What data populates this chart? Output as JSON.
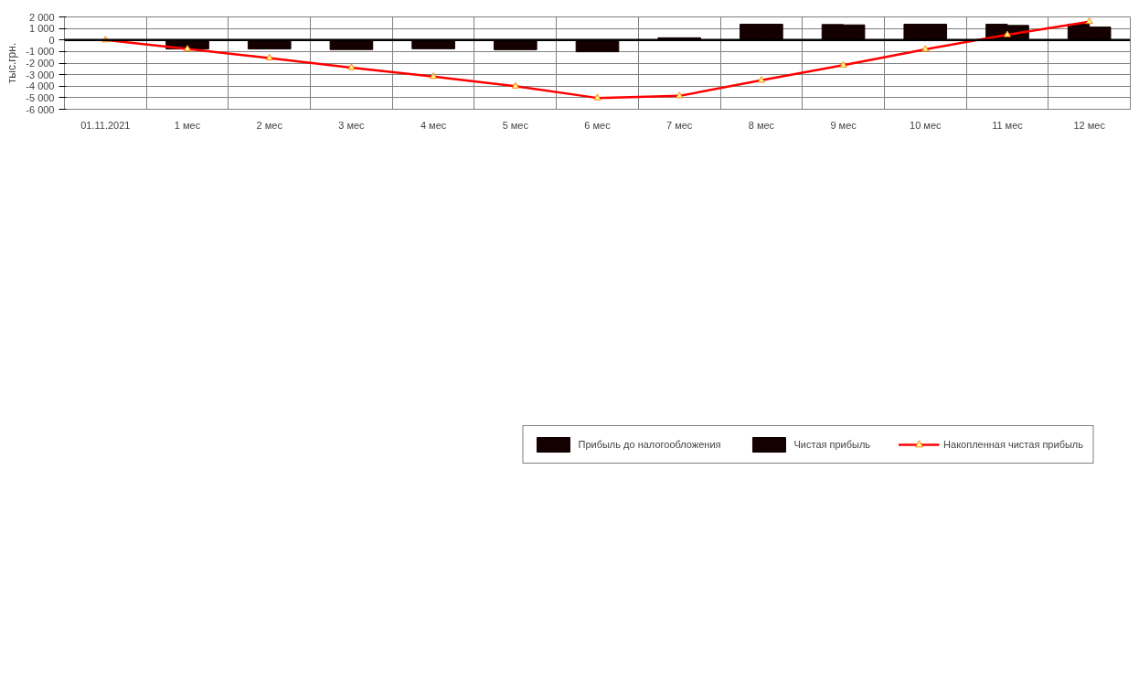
{
  "chart_data": {
    "type": "bar",
    "ylabel": "тыс.грн.",
    "categories": [
      "01.11.2021",
      "1 мес",
      "2 мес",
      "3 мес",
      "4 мес",
      "5 мес",
      "6 мес",
      "7 мес",
      "8 мес",
      "9 мес",
      "10 мес",
      "11 мес",
      "12 мес"
    ],
    "series": [
      {
        "name": "Прибыль до налогообложения",
        "color": "#140000",
        "values": [
          null,
          -780,
          -780,
          -830,
          -760,
          -840,
          -1020,
          190,
          1370,
          1340,
          1370,
          1370,
          1370
        ]
      },
      {
        "name": "Чистая прибыль",
        "color": "#140000",
        "values": [
          null,
          -780,
          -780,
          -830,
          -760,
          -840,
          -1020,
          190,
          1370,
          1310,
          1370,
          1260,
          1120
        ]
      },
      {
        "name": "Накопленная чистая прибыль",
        "type": "line",
        "color": "#ff0000",
        "marker": "triangle",
        "values": [
          0,
          -780,
          -1560,
          -2400,
          -3170,
          -4000,
          -5020,
          -4840,
          -3490,
          -2180,
          -810,
          450,
          1590
        ]
      }
    ],
    "ylim": [
      -6000,
      2000
    ],
    "yticks": [
      {
        "value": -6000,
        "label": "-6 000"
      },
      {
        "value": -5000,
        "label": "-5 000"
      },
      {
        "value": -4000,
        "label": "-4 000"
      },
      {
        "value": -3000,
        "label": "-3 000"
      },
      {
        "value": -2000,
        "label": "-2 000"
      },
      {
        "value": -1000,
        "label": "-1 000"
      },
      0,
      {
        "value": 1000,
        "label": "1 000"
      },
      {
        "value": 2000,
        "label": "2 000"
      }
    ],
    "grid": true,
    "legend": "bottom"
  }
}
